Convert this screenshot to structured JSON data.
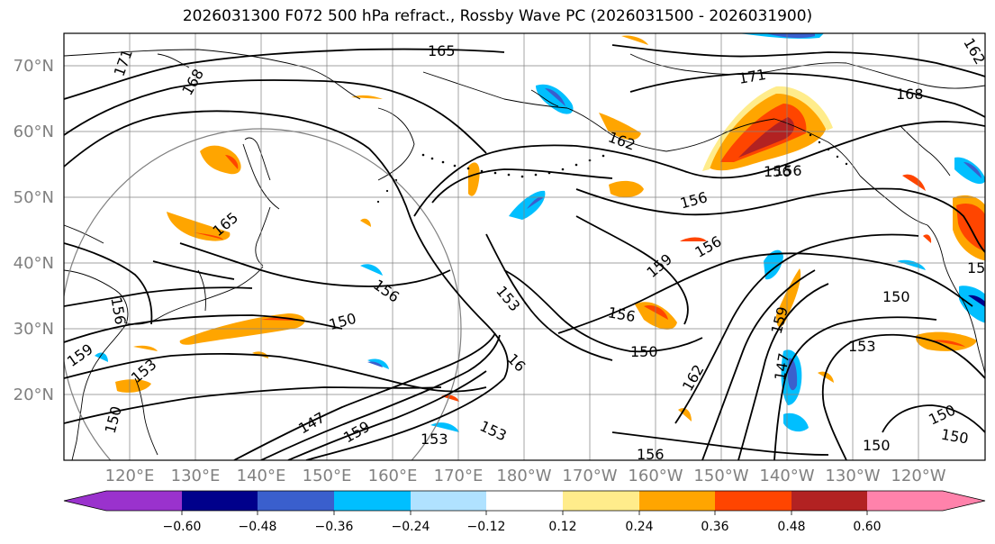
{
  "title": "2026031300 F072 500 hPa refract., Rossby Wave PC (2026031500 - 2026031900)",
  "map": {
    "lat_labels": [
      "70°N",
      "60°N",
      "50°N",
      "40°N",
      "30°N",
      "20°N"
    ],
    "lon_labels": [
      "120°E",
      "130°E",
      "140°E",
      "150°E",
      "160°E",
      "170°E",
      "180°W",
      "170°W",
      "160°W",
      "150°W",
      "140°W",
      "130°W",
      "120°W"
    ],
    "contour_labels": [
      "165",
      "171",
      "168",
      "171",
      "168",
      "162",
      "156",
      "156",
      "165",
      "156",
      "159",
      "156",
      "156",
      "150",
      "153",
      "159",
      "156",
      "150",
      "162",
      "153",
      "153",
      "147",
      "153",
      "159",
      "150",
      "147",
      "159",
      "153",
      "156",
      "156",
      "150",
      "150",
      "150",
      "150",
      "15",
      "162",
      "16"
    ],
    "line_color": "#000000",
    "grid_color": "#808080"
  },
  "colorbar": {
    "tick_labels": [
      "−0.60",
      "−0.48",
      "−0.36",
      "−0.24",
      "−0.12",
      "0.12",
      "0.24",
      "0.36",
      "0.48",
      "0.60"
    ],
    "colors": [
      "#9a32cd",
      "#00008b",
      "#3a5fcd",
      "#00bfff",
      "#b0e2ff",
      "#ffffff",
      "#ffec8b",
      "#ffa500",
      "#ff4500",
      "#b22222",
      "#ff82ab"
    ]
  }
}
